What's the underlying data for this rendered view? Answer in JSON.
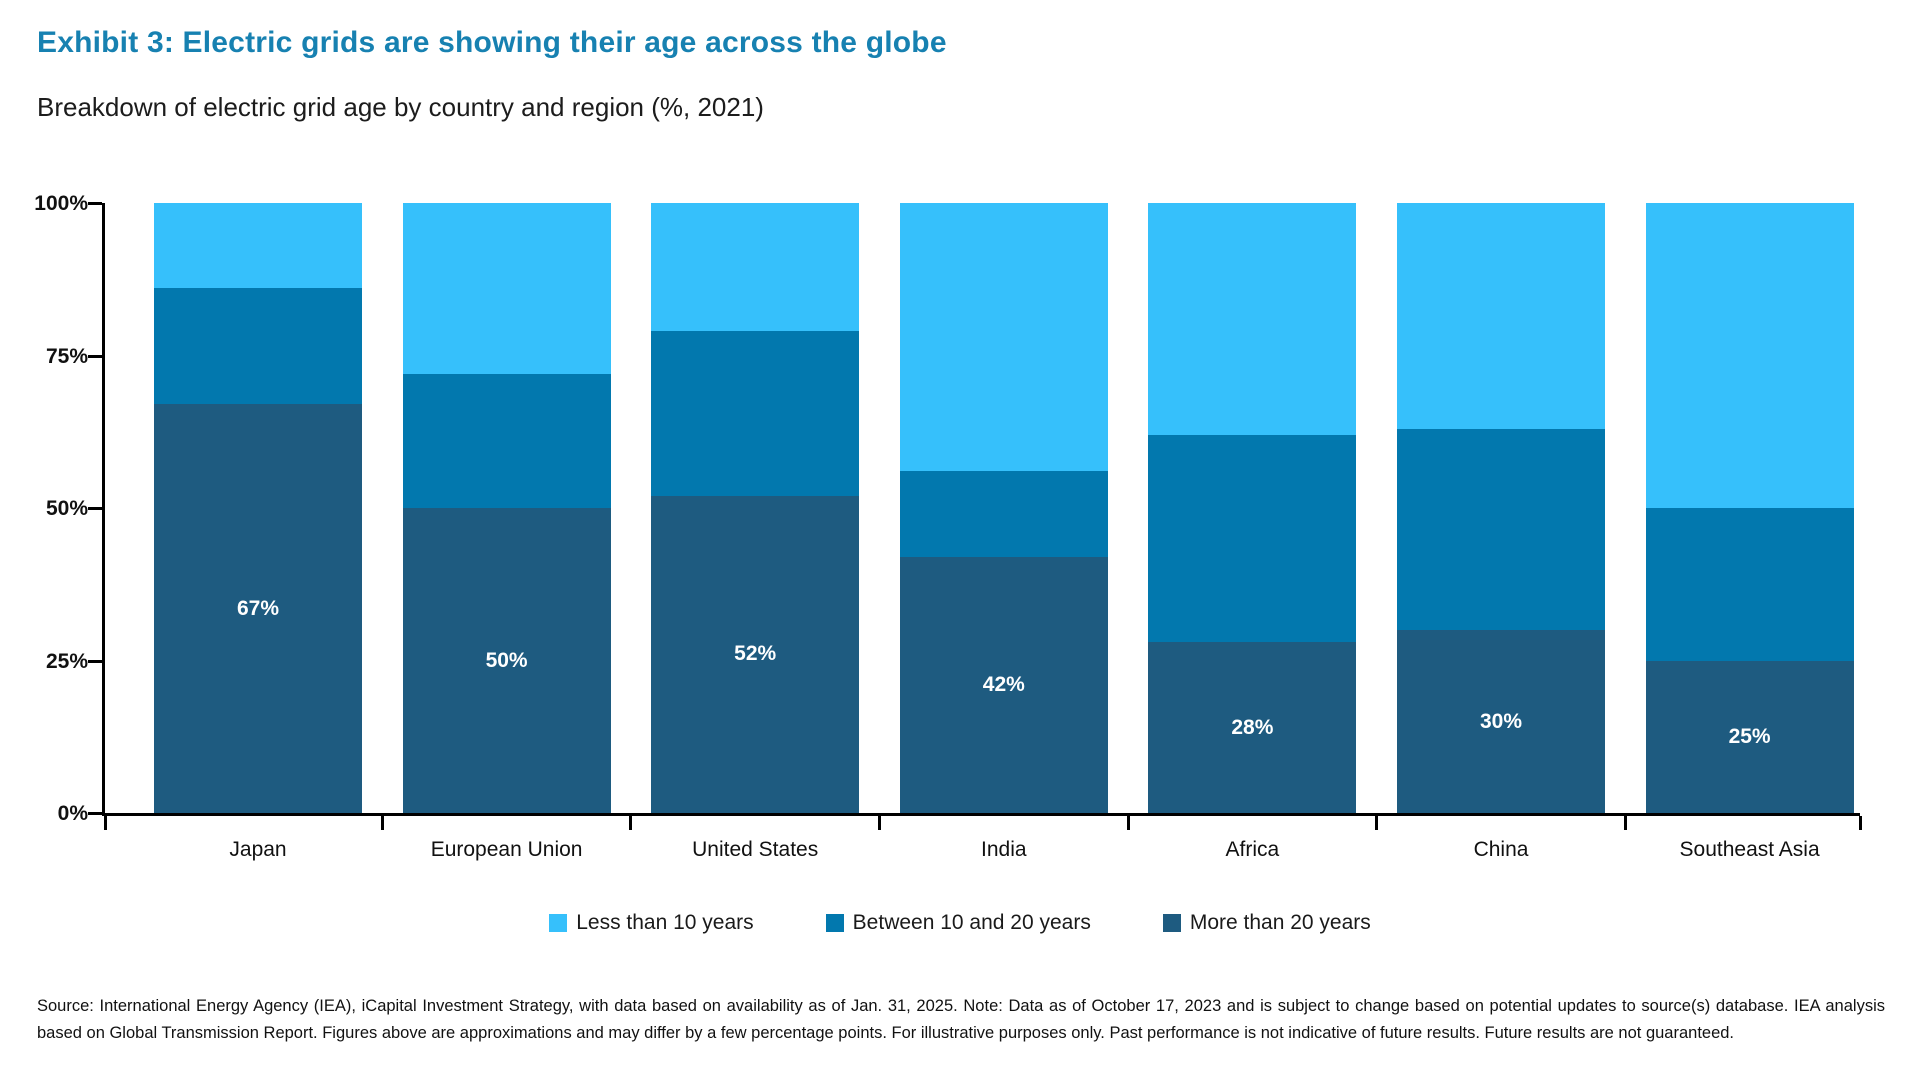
{
  "header": {
    "title": "Exhibit 3: Electric grids are showing their age across the globe",
    "subtitle": "Breakdown of electric grid age by country and region (%, 2021)",
    "title_color": "#1781B1"
  },
  "chart_data": {
    "type": "bar",
    "stacked": true,
    "title": "Breakdown of electric grid age by country and region (%, 2021)",
    "categories": [
      "Japan",
      "European Union",
      "United States",
      "India",
      "Africa",
      "China",
      "Southeast Asia"
    ],
    "series": [
      {
        "name": "Less than 10 years",
        "color": "#36C0FB",
        "values": [
          14,
          28,
          21,
          44,
          38,
          37,
          50
        ]
      },
      {
        "name": "Between 10 and 20 years",
        "color": "#0278AE",
        "values": [
          19,
          22,
          27,
          14,
          34,
          33,
          25
        ]
      },
      {
        "name": "More than 20 years",
        "color": "#1E5B80",
        "values": [
          67,
          50,
          52,
          42,
          28,
          30,
          25
        ],
        "data_labels": [
          "67%",
          "50%",
          "52%",
          "42%",
          "28%",
          "30%",
          "25%"
        ]
      }
    ],
    "xlabel": "",
    "ylabel": "",
    "ylim": [
      0,
      100
    ],
    "y_tick_values": [
      0,
      25,
      50,
      75,
      100
    ],
    "y_tick_labels": [
      "0%",
      "25%",
      "50%",
      "75%",
      "100%"
    ],
    "grid": false,
    "legend_position": "bottom"
  },
  "footer": {
    "text": "Source: International Energy Agency (IEA), iCapital Investment Strategy, with data based on availability as of Jan. 31, 2025. Note: Data as of October 17, 2023 and is subject to change based on potential updates to source(s) database. IEA analysis based on Global Transmission Report. Figures above are approximations and may differ by a few percentage points. For illustrative purposes only. Past performance is not indicative of future results. Future results are not guaranteed."
  }
}
